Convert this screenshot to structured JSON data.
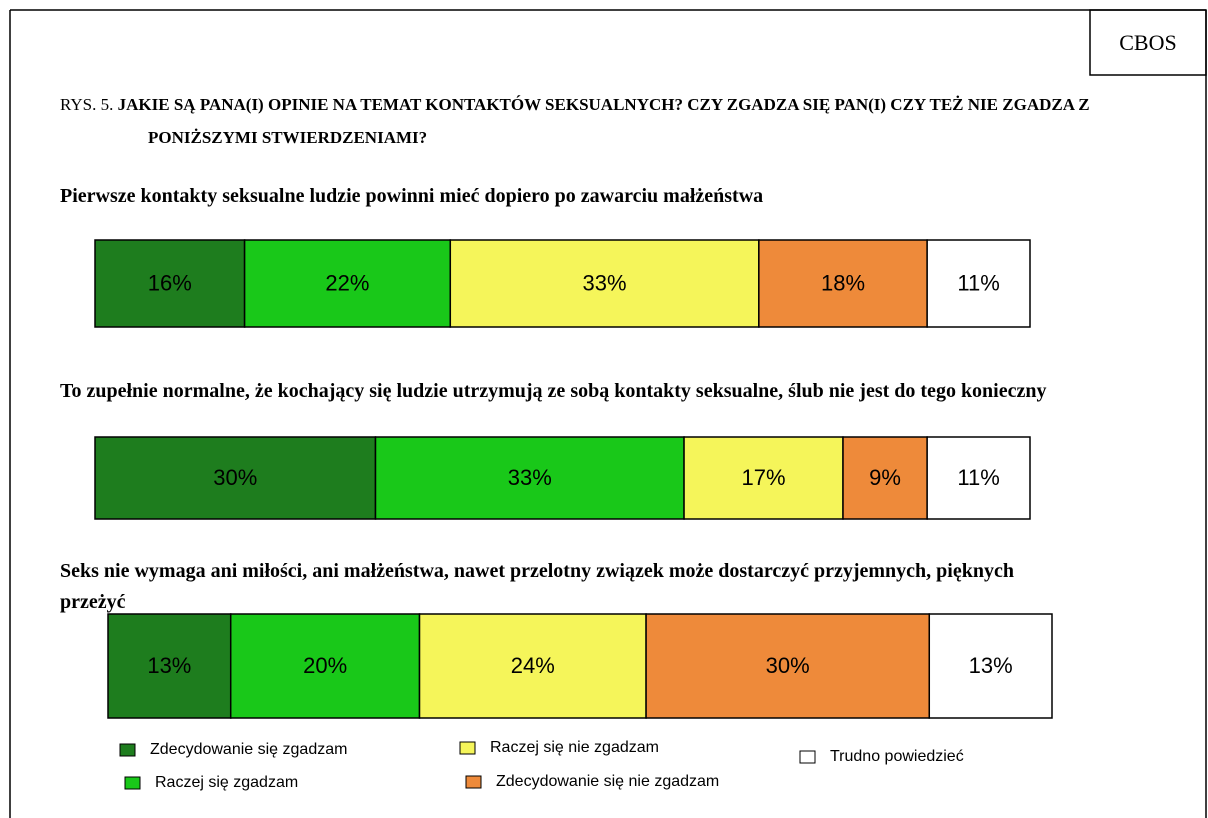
{
  "source": "CBOS",
  "chart_data": {
    "type": "stacked-bar-100",
    "figure_label": "RYS. 5.",
    "title": "JAKIE SĄ PANA(I) OPINIE NA TEMAT KONTAKTÓW SEKSUALNYCH? CZY ZGADZA SIĘ PAN(I) CZY TEŻ NIE ZGADZA Z PONIŻSZYMI STWIERDZENIAMI?",
    "categories": [
      "Pierwsze kontakty seksualne ludzie powinni mieć dopiero po zawarciu małżeństwa",
      "To zupełnie normalne, że kochający się ludzie utrzymują ze sobą kontakty seksualne, ślub nie jest do tego konieczny",
      "Seks nie wymaga ani miłości, ani małżeństwa, nawet przelotny związek może dostarczyć przyjemnych, pięknych przeżyć"
    ],
    "series": [
      {
        "name": "Zdecydowanie się zgadzam",
        "color": "#1e7d1e",
        "values": [
          16,
          30,
          13
        ],
        "value_labels": [
          "16%",
          "30%",
          "13%"
        ]
      },
      {
        "name": "Raczej się zgadzam",
        "color": "#19c819",
        "values": [
          22,
          33,
          20
        ],
        "value_labels": [
          "22%",
          "33%",
          "20%"
        ]
      },
      {
        "name": "Raczej się nie zgadzam",
        "color": "#f5f55a",
        "values": [
          33,
          17,
          24
        ],
        "value_labels": [
          "33%",
          "17%",
          "24%"
        ]
      },
      {
        "name": "Zdecydowanie się nie zgadzam",
        "color": "#ee8a3a",
        "values": [
          18,
          9,
          30
        ],
        "value_labels": [
          "18%",
          "9%",
          "30%"
        ]
      },
      {
        "name": "Trudno powiedzieć",
        "color": "#ffffff",
        "values": [
          11,
          11,
          13
        ],
        "value_labels": [
          "11%",
          "11%",
          "13%"
        ]
      }
    ]
  }
}
